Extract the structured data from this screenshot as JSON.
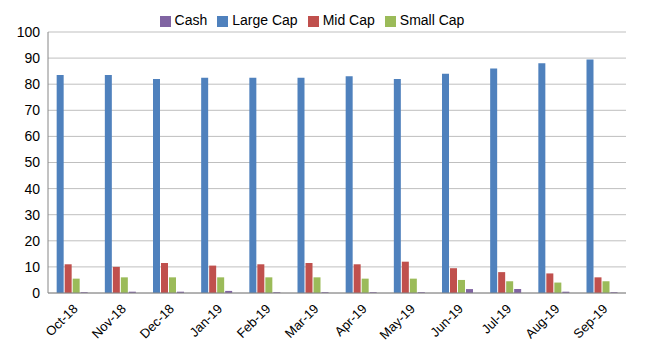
{
  "chart_data": {
    "type": "bar",
    "categories": [
      "Oct-18",
      "Nov-18",
      "Dec-18",
      "Jan-19",
      "Feb-19",
      "Mar-19",
      "Apr-19",
      "May-19",
      "Jun-19",
      "Jul-19",
      "Aug-19",
      "Sep-19"
    ],
    "series": [
      {
        "name": "Large Cap",
        "color": "#4f81bd",
        "values": [
          83.5,
          83.5,
          82,
          82.5,
          82.5,
          82.5,
          83,
          82,
          84,
          86,
          88,
          89.5
        ]
      },
      {
        "name": "Mid Cap",
        "color": "#c0504d",
        "values": [
          11,
          10,
          11.5,
          10.5,
          11,
          11.5,
          11,
          12,
          9.5,
          8,
          7.5,
          6
        ]
      },
      {
        "name": "Small Cap",
        "color": "#9bbb59",
        "values": [
          5.5,
          6,
          6,
          6,
          6,
          6,
          5.5,
          5.5,
          5,
          4.5,
          4,
          4.5
        ]
      },
      {
        "name": "Cash",
        "color": "#8064a2",
        "values": [
          0.3,
          0.5,
          0.5,
          0.8,
          0.3,
          0.3,
          0.3,
          0.3,
          1.5,
          1.5,
          0.5,
          0.3
        ]
      }
    ],
    "ylim": [
      0,
      100
    ],
    "yticks": [
      0,
      10,
      20,
      30,
      40,
      50,
      60,
      70,
      80,
      90,
      100
    ],
    "grid": true,
    "legend": "top"
  }
}
